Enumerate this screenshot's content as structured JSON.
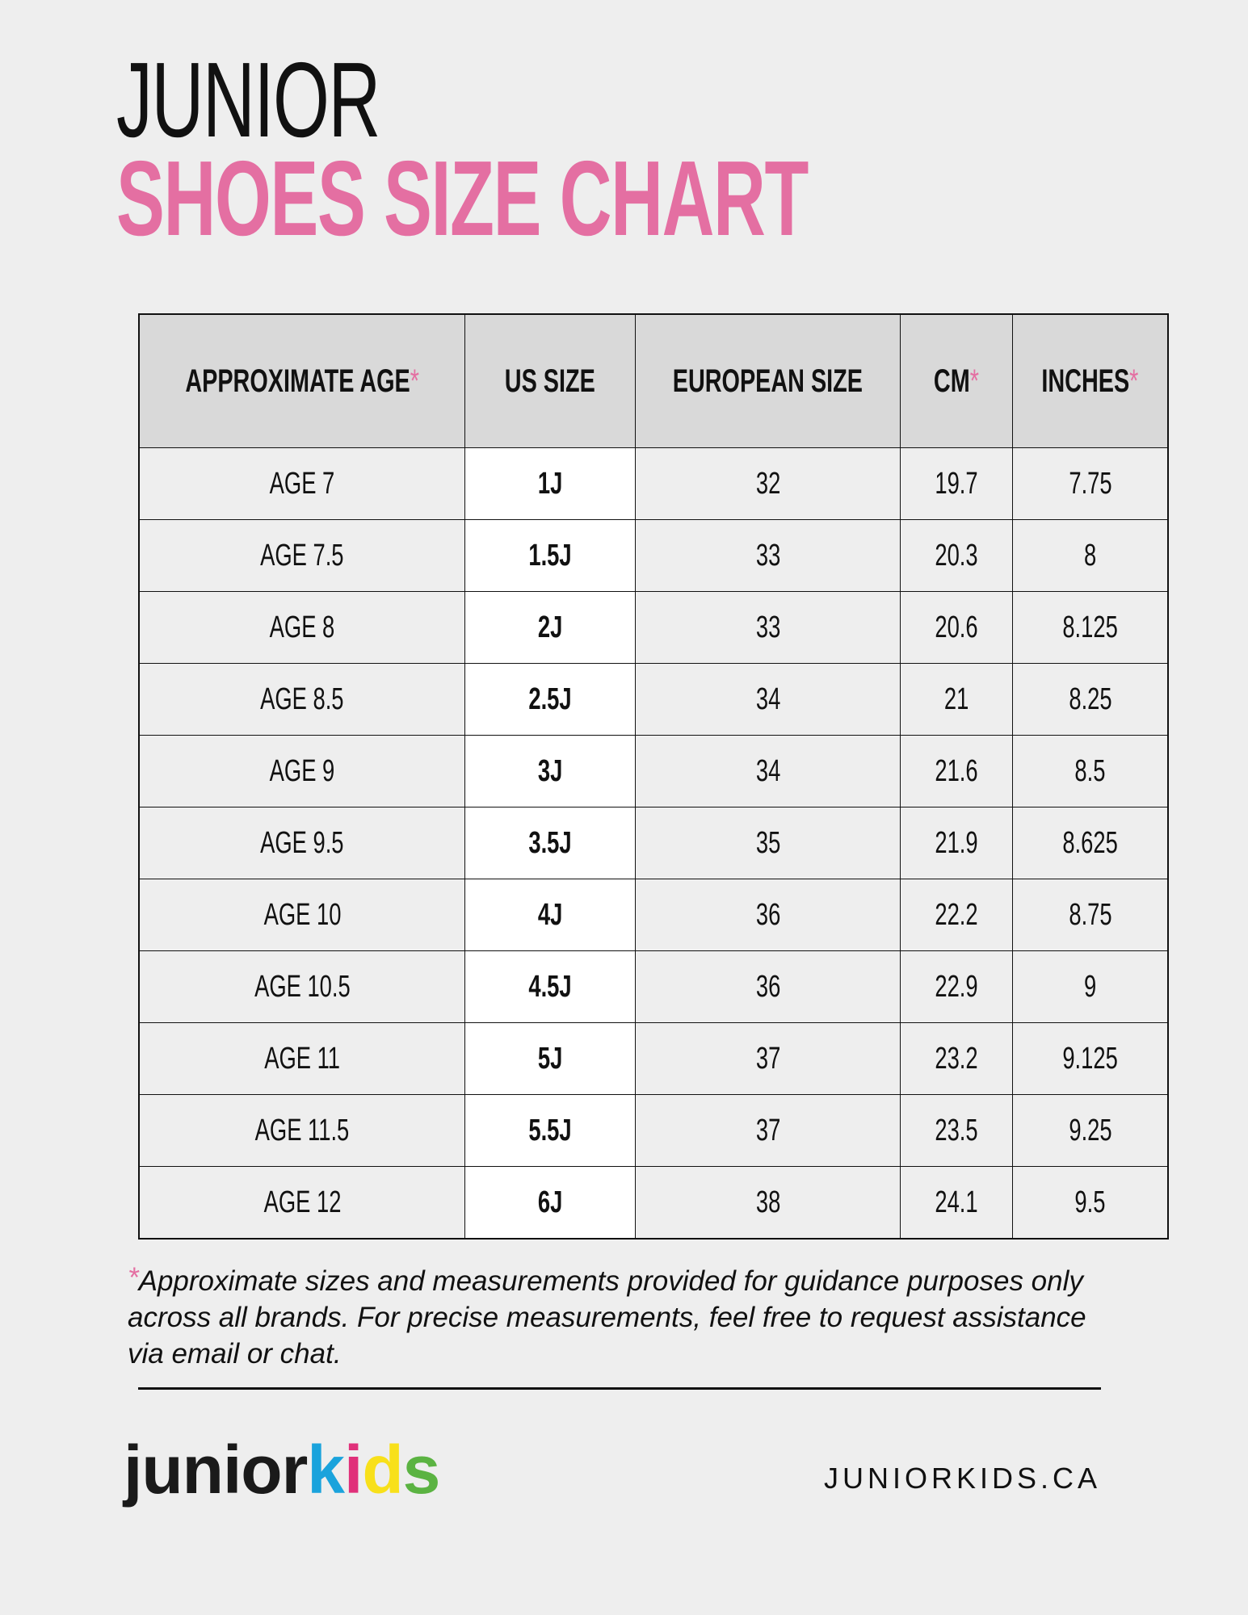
{
  "title": {
    "line1": "JUNIOR",
    "line2": "SHOES SIZE CHART"
  },
  "colors": {
    "accent": "#e46fa2",
    "background": "#eeeeee",
    "header_bg": "#d9d9d9",
    "logo_k": "#1aa3dc",
    "logo_i": "#e0307a",
    "logo_d": "#f8e01a",
    "logo_s": "#5bb342"
  },
  "table": {
    "headers": [
      {
        "label": "APPROXIMATE AGE",
        "asterisk": "*"
      },
      {
        "label": "US SIZE",
        "asterisk": ""
      },
      {
        "label": "EUROPEAN SIZE",
        "asterisk": ""
      },
      {
        "label": "CM",
        "asterisk": "*"
      },
      {
        "label": "INCHES",
        "asterisk": "*"
      }
    ],
    "rows": [
      [
        "AGE 7",
        "1J",
        "32",
        "19.7",
        "7.75"
      ],
      [
        "AGE 7.5",
        "1.5J",
        "33",
        "20.3",
        "8"
      ],
      [
        "AGE 8",
        "2J",
        "33",
        "20.6",
        "8.125"
      ],
      [
        "AGE 8.5",
        "2.5J",
        "34",
        "21",
        "8.25"
      ],
      [
        "AGE 9",
        "3J",
        "34",
        "21.6",
        "8.5"
      ],
      [
        "AGE 9.5",
        "3.5J",
        "35",
        "21.9",
        "8.625"
      ],
      [
        "AGE 10",
        "4J",
        "36",
        "22.2",
        "8.75"
      ],
      [
        "AGE 10.5",
        "4.5J",
        "36",
        "22.9",
        "9"
      ],
      [
        "AGE 11",
        "5J",
        "37",
        "23.2",
        "9.125"
      ],
      [
        "AGE 11.5",
        "5.5J",
        "37",
        "23.5",
        "9.25"
      ],
      [
        "AGE 12",
        "6J",
        "38",
        "24.1",
        "9.5"
      ]
    ]
  },
  "footnote": {
    "asterisk": "*",
    "text": "Approximate sizes and measurements provided for guidance purposes only across all brands. For precise measurements, feel free to request assistance via email or chat."
  },
  "footer": {
    "logo": {
      "junior": "junior",
      "k": "k",
      "i": "i",
      "d": "d",
      "s": "s"
    },
    "website": "JUNIORKIDS.CA"
  }
}
